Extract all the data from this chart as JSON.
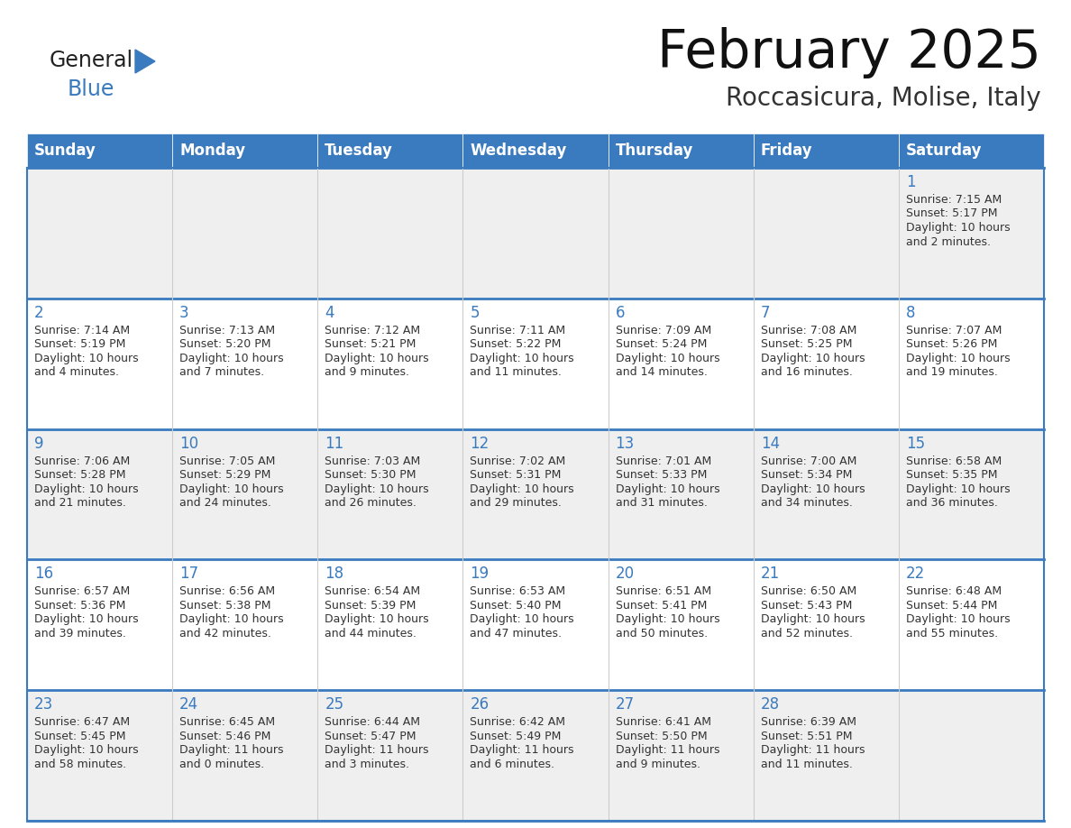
{
  "title": "February 2025",
  "subtitle": "Roccasicura, Molise, Italy",
  "header_bg": "#3A7ABF",
  "header_text_color": "#FFFFFF",
  "cell_bg_light": "#EFEFEF",
  "cell_bg_white": "#FFFFFF",
  "cell_text_color": "#333333",
  "day_number_color": "#3A7ABF",
  "border_color": "#3A7ABF",
  "grid_line_color": "#CCCCCC",
  "days_of_week": [
    "Sunday",
    "Monday",
    "Tuesday",
    "Wednesday",
    "Thursday",
    "Friday",
    "Saturday"
  ],
  "weeks": [
    [
      {
        "day": null,
        "sunrise": null,
        "sunset": null,
        "daylight": null
      },
      {
        "day": null,
        "sunrise": null,
        "sunset": null,
        "daylight": null
      },
      {
        "day": null,
        "sunrise": null,
        "sunset": null,
        "daylight": null
      },
      {
        "day": null,
        "sunrise": null,
        "sunset": null,
        "daylight": null
      },
      {
        "day": null,
        "sunrise": null,
        "sunset": null,
        "daylight": null
      },
      {
        "day": null,
        "sunrise": null,
        "sunset": null,
        "daylight": null
      },
      {
        "day": 1,
        "sunrise": "7:15 AM",
        "sunset": "5:17 PM",
        "daylight": "10 hours\nand 2 minutes."
      }
    ],
    [
      {
        "day": 2,
        "sunrise": "7:14 AM",
        "sunset": "5:19 PM",
        "daylight": "10 hours\nand 4 minutes."
      },
      {
        "day": 3,
        "sunrise": "7:13 AM",
        "sunset": "5:20 PM",
        "daylight": "10 hours\nand 7 minutes."
      },
      {
        "day": 4,
        "sunrise": "7:12 AM",
        "sunset": "5:21 PM",
        "daylight": "10 hours\nand 9 minutes."
      },
      {
        "day": 5,
        "sunrise": "7:11 AM",
        "sunset": "5:22 PM",
        "daylight": "10 hours\nand 11 minutes."
      },
      {
        "day": 6,
        "sunrise": "7:09 AM",
        "sunset": "5:24 PM",
        "daylight": "10 hours\nand 14 minutes."
      },
      {
        "day": 7,
        "sunrise": "7:08 AM",
        "sunset": "5:25 PM",
        "daylight": "10 hours\nand 16 minutes."
      },
      {
        "day": 8,
        "sunrise": "7:07 AM",
        "sunset": "5:26 PM",
        "daylight": "10 hours\nand 19 minutes."
      }
    ],
    [
      {
        "day": 9,
        "sunrise": "7:06 AM",
        "sunset": "5:28 PM",
        "daylight": "10 hours\nand 21 minutes."
      },
      {
        "day": 10,
        "sunrise": "7:05 AM",
        "sunset": "5:29 PM",
        "daylight": "10 hours\nand 24 minutes."
      },
      {
        "day": 11,
        "sunrise": "7:03 AM",
        "sunset": "5:30 PM",
        "daylight": "10 hours\nand 26 minutes."
      },
      {
        "day": 12,
        "sunrise": "7:02 AM",
        "sunset": "5:31 PM",
        "daylight": "10 hours\nand 29 minutes."
      },
      {
        "day": 13,
        "sunrise": "7:01 AM",
        "sunset": "5:33 PM",
        "daylight": "10 hours\nand 31 minutes."
      },
      {
        "day": 14,
        "sunrise": "7:00 AM",
        "sunset": "5:34 PM",
        "daylight": "10 hours\nand 34 minutes."
      },
      {
        "day": 15,
        "sunrise": "6:58 AM",
        "sunset": "5:35 PM",
        "daylight": "10 hours\nand 36 minutes."
      }
    ],
    [
      {
        "day": 16,
        "sunrise": "6:57 AM",
        "sunset": "5:36 PM",
        "daylight": "10 hours\nand 39 minutes."
      },
      {
        "day": 17,
        "sunrise": "6:56 AM",
        "sunset": "5:38 PM",
        "daylight": "10 hours\nand 42 minutes."
      },
      {
        "day": 18,
        "sunrise": "6:54 AM",
        "sunset": "5:39 PM",
        "daylight": "10 hours\nand 44 minutes."
      },
      {
        "day": 19,
        "sunrise": "6:53 AM",
        "sunset": "5:40 PM",
        "daylight": "10 hours\nand 47 minutes."
      },
      {
        "day": 20,
        "sunrise": "6:51 AM",
        "sunset": "5:41 PM",
        "daylight": "10 hours\nand 50 minutes."
      },
      {
        "day": 21,
        "sunrise": "6:50 AM",
        "sunset": "5:43 PM",
        "daylight": "10 hours\nand 52 minutes."
      },
      {
        "day": 22,
        "sunrise": "6:48 AM",
        "sunset": "5:44 PM",
        "daylight": "10 hours\nand 55 minutes."
      }
    ],
    [
      {
        "day": 23,
        "sunrise": "6:47 AM",
        "sunset": "5:45 PM",
        "daylight": "10 hours\nand 58 minutes."
      },
      {
        "day": 24,
        "sunrise": "6:45 AM",
        "sunset": "5:46 PM",
        "daylight": "11 hours\nand 0 minutes."
      },
      {
        "day": 25,
        "sunrise": "6:44 AM",
        "sunset": "5:47 PM",
        "daylight": "11 hours\nand 3 minutes."
      },
      {
        "day": 26,
        "sunrise": "6:42 AM",
        "sunset": "5:49 PM",
        "daylight": "11 hours\nand 6 minutes."
      },
      {
        "day": 27,
        "sunrise": "6:41 AM",
        "sunset": "5:50 PM",
        "daylight": "11 hours\nand 9 minutes."
      },
      {
        "day": 28,
        "sunrise": "6:39 AM",
        "sunset": "5:51 PM",
        "daylight": "11 hours\nand 11 minutes."
      },
      {
        "day": null,
        "sunrise": null,
        "sunset": null,
        "daylight": null
      }
    ]
  ],
  "logo_text1": "General",
  "logo_text2": "Blue",
  "logo_color1": "#222222",
  "logo_color2": "#3A7ABF",
  "fig_width": 11.88,
  "fig_height": 9.18,
  "dpi": 100
}
